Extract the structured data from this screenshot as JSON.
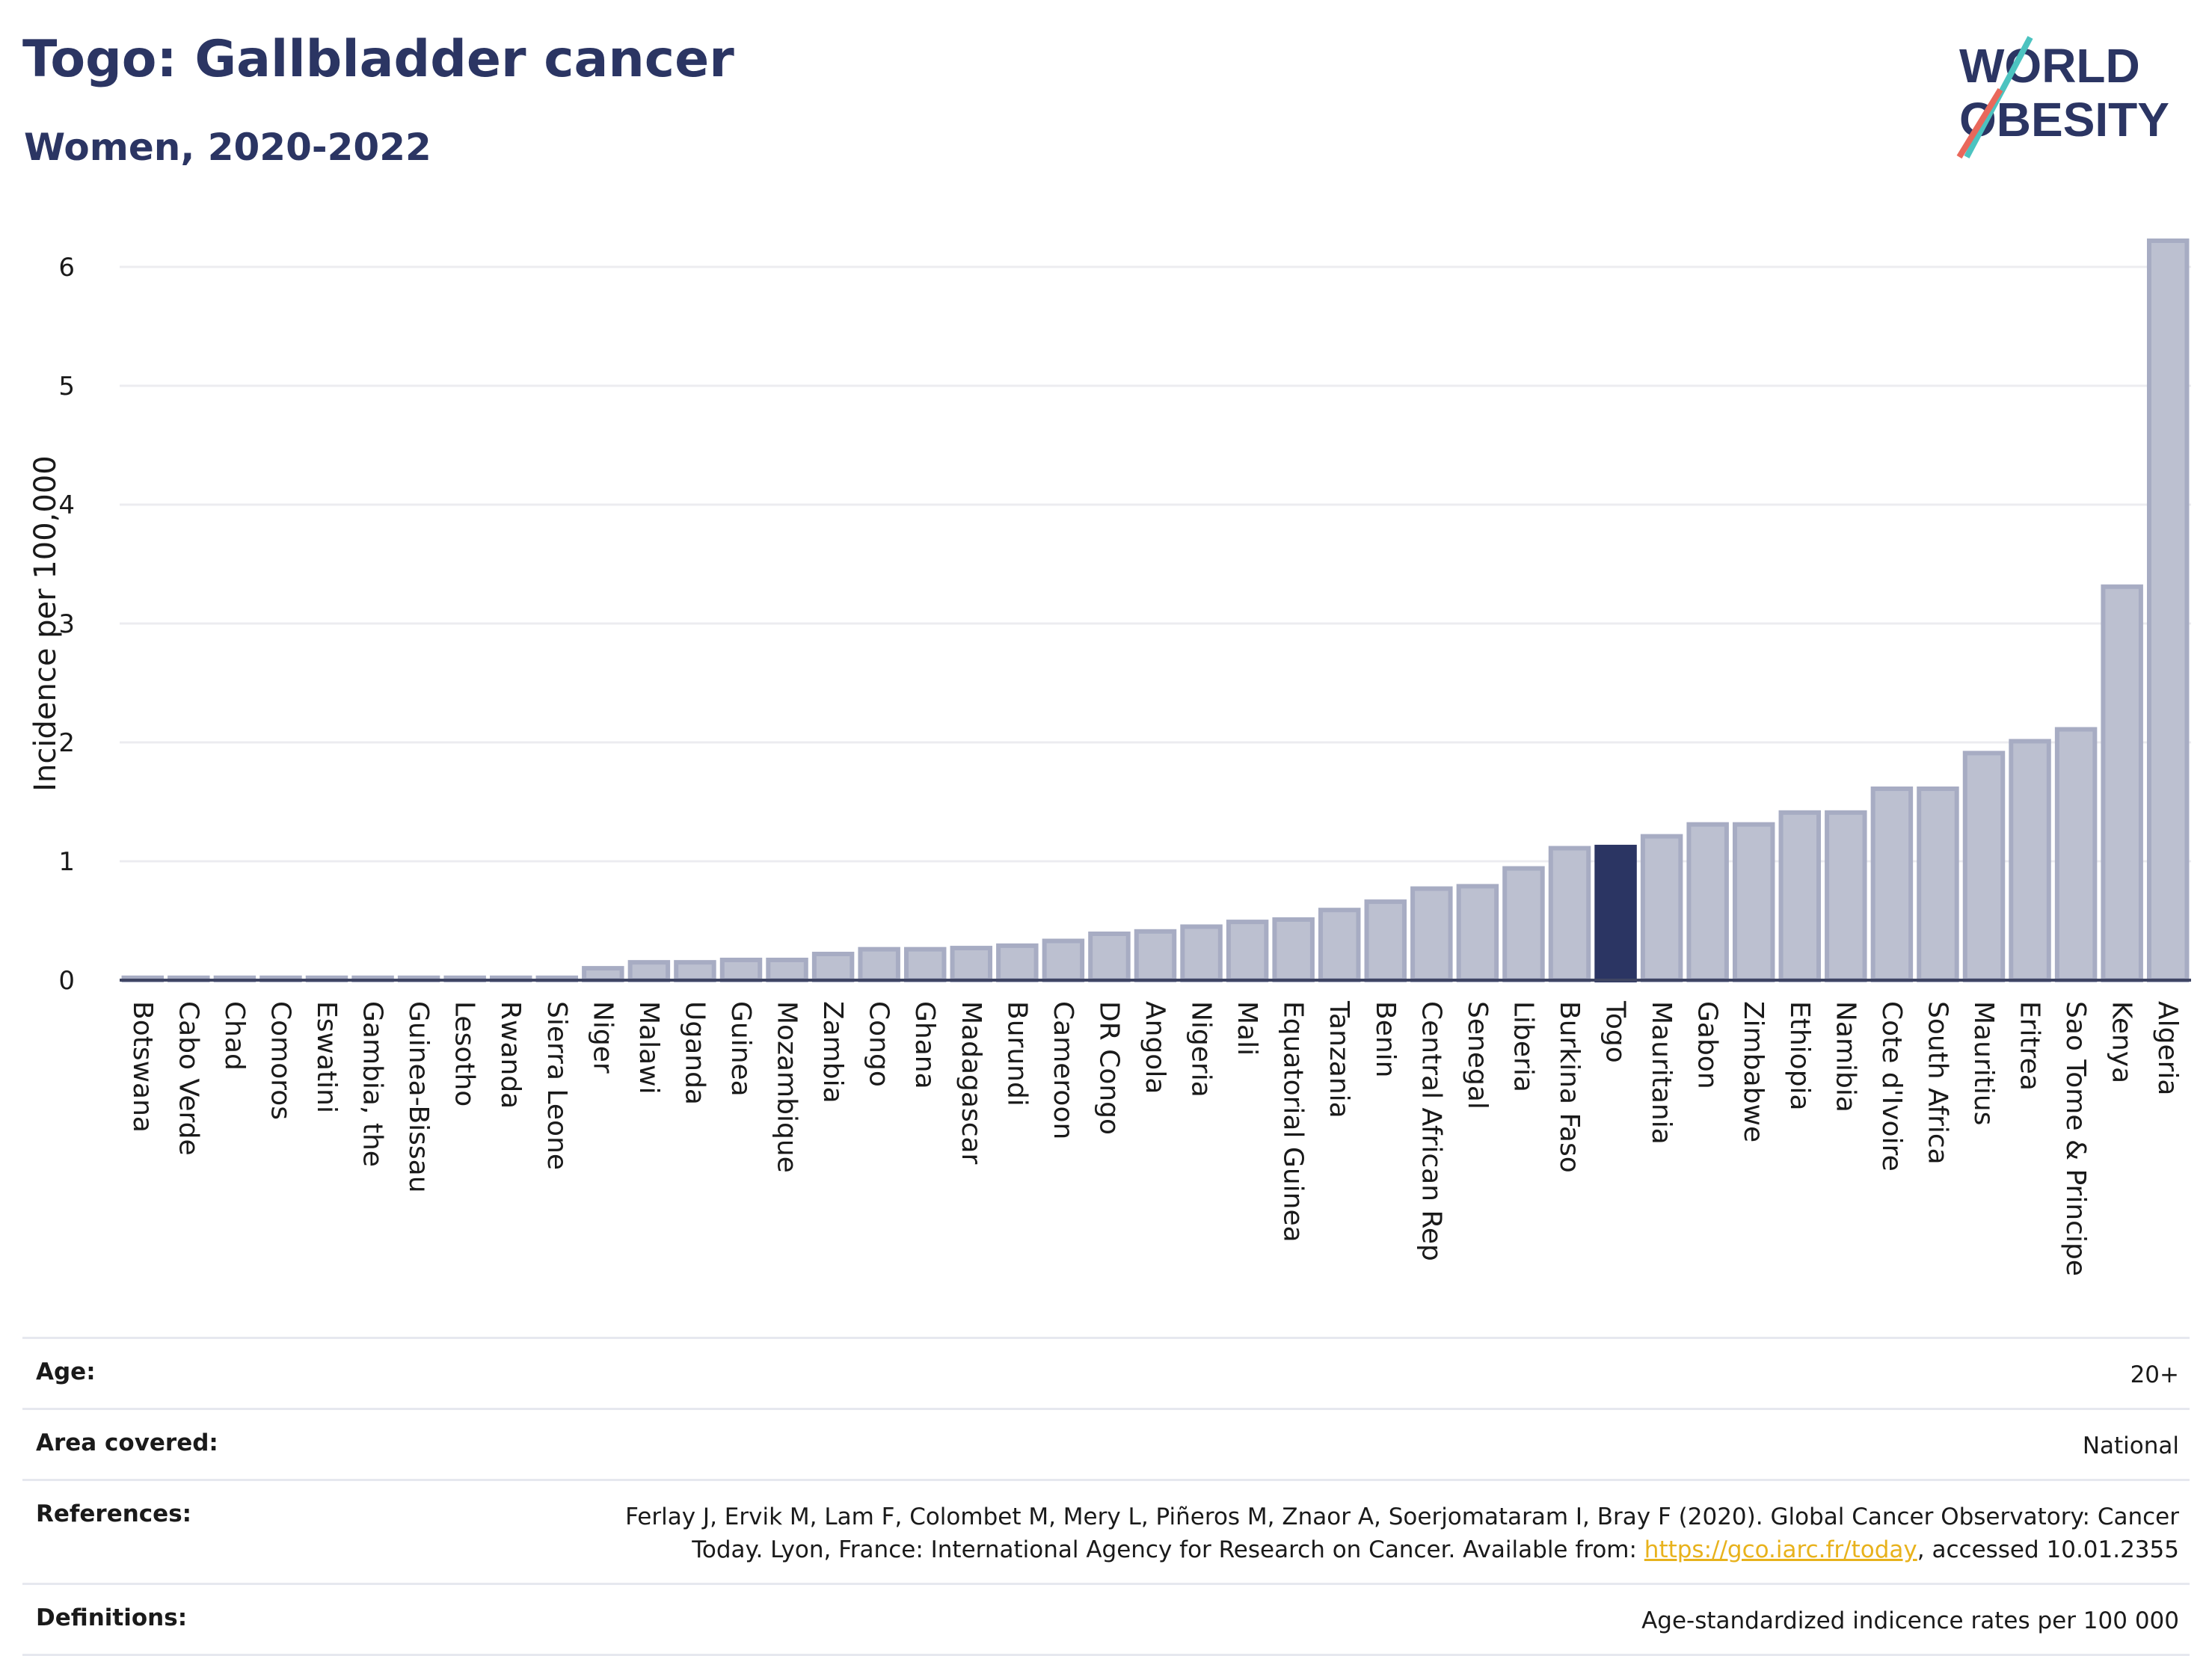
{
  "header": {
    "title": "Togo: Gallbladder cancer",
    "subtitle": "Women, 2020-2022"
  },
  "logo": {
    "line1": "WORLD",
    "line2": "OBESITY"
  },
  "chart_data": {
    "type": "bar",
    "ylabel": "Incidence per 100,000",
    "ylim": [
      0,
      6.4
    ],
    "yticks": [
      0,
      1,
      2,
      3,
      4,
      5,
      6
    ],
    "grid": true,
    "highlight": "Togo",
    "categories": [
      "Botswana",
      "Cabo Verde",
      "Chad",
      "Comoros",
      "Eswatini",
      "Gambia, the",
      "Guinea-Bissau",
      "Lesotho",
      "Rwanda",
      "Sierra Leone",
      "Niger",
      "Malawi",
      "Uganda",
      "Guinea",
      "Mozambique",
      "Zambia",
      "Congo",
      "Ghana",
      "Madagascar",
      "Burundi",
      "Cameroon",
      "DR Congo",
      "Angola",
      "Nigeria",
      "Mali",
      "Equatorial Guinea",
      "Tanzania",
      "Benin",
      "Central African Rep",
      "Senegal",
      "Liberia",
      "Burkina Faso",
      "Togo",
      "Mauritania",
      "Gabon",
      "Zimbabwe",
      "Ethiopia",
      "Namibia",
      "Cote d'Ivoire",
      "South Africa",
      "Mauritius",
      "Eritrea",
      "Sao Tome & Principe",
      "Kenya",
      "Algeria"
    ],
    "values": [
      0.02,
      0.02,
      0.02,
      0.02,
      0.02,
      0.02,
      0.02,
      0.02,
      0.02,
      0.02,
      0.1,
      0.15,
      0.15,
      0.17,
      0.17,
      0.22,
      0.26,
      0.26,
      0.27,
      0.29,
      0.33,
      0.39,
      0.41,
      0.45,
      0.49,
      0.51,
      0.59,
      0.66,
      0.77,
      0.79,
      0.94,
      1.11,
      1.12,
      1.21,
      1.31,
      1.31,
      1.41,
      1.41,
      1.61,
      1.61,
      1.91,
      2.01,
      2.11,
      3.31,
      6.22
    ],
    "colors": {
      "bar": "#bcc0d0",
      "bar_border": "#a7acc3",
      "highlight": "#2b3563",
      "grid": "#ececf0",
      "axis": "#3f4563"
    }
  },
  "meta": {
    "age_label": "Age:",
    "age_value": "20+",
    "area_label": "Area covered:",
    "area_value": "National",
    "references_label": "References:",
    "references_text": "Ferlay J, Ervik M, Lam F, Colombet M, Mery L, Piñeros M, Znaor A, Soerjomataram I, Bray F (2020). Global Cancer Observatory: Cancer Today. Lyon, France: International Agency for Research on Cancer. Available from:",
    "references_link": "https://gco.iarc.fr/today",
    "references_suffix": ", accessed 10.01.2355",
    "definitions_label": "Definitions:",
    "definitions_value": "Age-standardized indicence rates per 100 000"
  }
}
